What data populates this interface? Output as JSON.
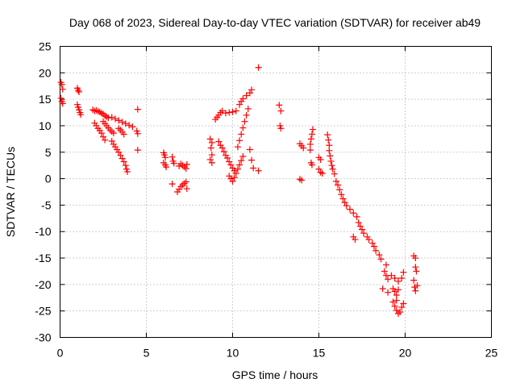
{
  "chart_data": {
    "type": "scatter",
    "title": "Day 068 of 2023, Sidereal Day-to-day VTEC variation (SDTVAR) for receiver ab49",
    "xlabel": "GPS time / hours",
    "ylabel": "SDTVAR / TECUs",
    "xlim": [
      0,
      25
    ],
    "ylim": [
      -30,
      25
    ],
    "xticks": [
      0,
      5,
      10,
      15,
      20,
      25
    ],
    "yticks": [
      -30,
      -25,
      -20,
      -15,
      -10,
      -5,
      0,
      5,
      10,
      15,
      20,
      25
    ],
    "grid": true,
    "marker": "plus",
    "color": "#ff0000",
    "series": [
      {
        "name": "SDTVAR",
        "points": [
          [
            0.05,
            18.2
          ],
          [
            0.1,
            17.8
          ],
          [
            0.15,
            16.9
          ],
          [
            0.05,
            15.2
          ],
          [
            0.1,
            14.6
          ],
          [
            0.15,
            14.2
          ],
          [
            1.0,
            17.1
          ],
          [
            1.05,
            16.7
          ],
          [
            1.1,
            16.4
          ],
          [
            1.0,
            14.0
          ],
          [
            1.05,
            13.5
          ],
          [
            1.1,
            13.0
          ],
          [
            1.15,
            12.5
          ],
          [
            1.2,
            12.1
          ],
          [
            1.9,
            13.0
          ],
          [
            2.0,
            12.8
          ],
          [
            2.1,
            12.9
          ],
          [
            2.2,
            12.7
          ],
          [
            2.3,
            12.6
          ],
          [
            2.4,
            12.4
          ],
          [
            2.5,
            12.2
          ],
          [
            2.6,
            11.9
          ],
          [
            2.7,
            11.7
          ],
          [
            2.8,
            11.5
          ],
          [
            2.0,
            10.5
          ],
          [
            2.1,
            10.0
          ],
          [
            2.2,
            9.5
          ],
          [
            2.3,
            9.1
          ],
          [
            2.4,
            8.6
          ],
          [
            2.5,
            7.9
          ],
          [
            2.6,
            7.3
          ],
          [
            2.5,
            10.8
          ],
          [
            2.6,
            10.4
          ],
          [
            2.7,
            10.0
          ],
          [
            2.8,
            9.6
          ],
          [
            2.9,
            9.2
          ],
          [
            3.0,
            8.9
          ],
          [
            3.1,
            8.6
          ],
          [
            3.0,
            11.6
          ],
          [
            3.2,
            11.3
          ],
          [
            3.4,
            11.0
          ],
          [
            3.6,
            10.7
          ],
          [
            3.8,
            10.4
          ],
          [
            4.0,
            10.1
          ],
          [
            4.2,
            9.8
          ],
          [
            3.0,
            7.1
          ],
          [
            3.1,
            6.5
          ],
          [
            3.2,
            6.0
          ],
          [
            3.3,
            5.5
          ],
          [
            3.4,
            5.0
          ],
          [
            3.5,
            4.4
          ],
          [
            3.6,
            3.8
          ],
          [
            3.7,
            3.2
          ],
          [
            3.8,
            2.5
          ],
          [
            3.85,
            1.8
          ],
          [
            3.9,
            1.3
          ],
          [
            3.4,
            9.5
          ],
          [
            3.5,
            9.2
          ],
          [
            3.6,
            8.8
          ],
          [
            3.7,
            8.4
          ],
          [
            4.5,
            13.1
          ],
          [
            4.45,
            9.0
          ],
          [
            4.5,
            8.5
          ],
          [
            4.5,
            5.4
          ],
          [
            6.0,
            4.9
          ],
          [
            6.05,
            4.5
          ],
          [
            6.1,
            4.0
          ],
          [
            6.0,
            3.0
          ],
          [
            6.1,
            2.6
          ],
          [
            6.15,
            2.2
          ],
          [
            6.5,
            4.1
          ],
          [
            6.55,
            3.3
          ],
          [
            6.6,
            2.9
          ],
          [
            6.5,
            -1.0
          ],
          [
            6.8,
            -2.5
          ],
          [
            6.9,
            -2.0
          ],
          [
            7.0,
            -1.5
          ],
          [
            7.1,
            -1.2
          ],
          [
            7.2,
            -0.9
          ],
          [
            7.3,
            -0.6
          ],
          [
            7.35,
            -1.9
          ],
          [
            6.9,
            2.4
          ],
          [
            7.0,
            2.8
          ],
          [
            7.1,
            2.5
          ],
          [
            7.2,
            2.2
          ],
          [
            7.3,
            1.9
          ],
          [
            7.35,
            2.7
          ],
          [
            8.7,
            7.5
          ],
          [
            8.8,
            6.8
          ],
          [
            8.75,
            5.8
          ],
          [
            8.8,
            4.5
          ],
          [
            8.7,
            3.6
          ],
          [
            8.8,
            3.0
          ],
          [
            9.0,
            11.2
          ],
          [
            9.1,
            11.6
          ],
          [
            9.2,
            12.0
          ],
          [
            9.3,
            12.5
          ],
          [
            9.4,
            12.8
          ],
          [
            9.6,
            12.4
          ],
          [
            9.8,
            12.5
          ],
          [
            10.0,
            12.6
          ],
          [
            10.2,
            12.8
          ],
          [
            9.2,
            7.0
          ],
          [
            9.3,
            6.3
          ],
          [
            9.4,
            5.8
          ],
          [
            9.5,
            5.1
          ],
          [
            9.6,
            4.4
          ],
          [
            9.7,
            3.9
          ],
          [
            9.8,
            3.2
          ],
          [
            9.9,
            2.6
          ],
          [
            10.0,
            2.0
          ],
          [
            10.1,
            1.5
          ],
          [
            9.8,
            0.5
          ],
          [
            9.9,
            0.0
          ],
          [
            10.0,
            -0.5
          ],
          [
            10.1,
            0.2
          ],
          [
            10.2,
            1.0
          ],
          [
            10.3,
            1.8
          ],
          [
            10.4,
            2.6
          ],
          [
            10.5,
            3.4
          ],
          [
            10.6,
            4.2
          ],
          [
            10.3,
            6.0
          ],
          [
            10.4,
            7.2
          ],
          [
            10.5,
            8.4
          ],
          [
            10.6,
            9.6
          ],
          [
            10.7,
            10.8
          ],
          [
            10.8,
            12.0
          ],
          [
            10.9,
            13.2
          ],
          [
            10.4,
            14.0
          ],
          [
            10.5,
            14.6
          ],
          [
            10.6,
            15.1
          ],
          [
            10.8,
            15.7
          ],
          [
            11.0,
            16.2
          ],
          [
            11.1,
            16.8
          ],
          [
            11.0,
            5.5
          ],
          [
            11.1,
            3.5
          ],
          [
            11.2,
            2.0
          ],
          [
            11.5,
            1.5
          ],
          [
            11.5,
            21.0
          ],
          [
            12.7,
            13.9
          ],
          [
            12.8,
            12.8
          ],
          [
            12.75,
            10.0
          ],
          [
            12.8,
            9.5
          ],
          [
            13.9,
            6.6
          ],
          [
            14.0,
            6.2
          ],
          [
            14.1,
            5.8
          ],
          [
            13.9,
            -0.1
          ],
          [
            14.0,
            -0.3
          ],
          [
            14.5,
            6.5
          ],
          [
            14.55,
            7.5
          ],
          [
            14.6,
            8.4
          ],
          [
            14.65,
            9.3
          ],
          [
            14.5,
            5.4
          ],
          [
            14.55,
            3.0
          ],
          [
            14.6,
            2.6
          ],
          [
            15.0,
            4.0
          ],
          [
            15.1,
            3.6
          ],
          [
            15.0,
            1.8
          ],
          [
            15.1,
            1.2
          ],
          [
            15.2,
            1.0
          ],
          [
            15.5,
            8.3
          ],
          [
            15.55,
            7.3
          ],
          [
            15.6,
            6.3
          ],
          [
            15.6,
            5.3
          ],
          [
            15.65,
            4.3
          ],
          [
            15.7,
            3.3
          ],
          [
            15.75,
            2.5
          ],
          [
            15.8,
            1.8
          ],
          [
            15.9,
            0.9
          ],
          [
            16.0,
            -0.5
          ],
          [
            16.1,
            -1.2
          ],
          [
            16.2,
            -2.1
          ],
          [
            16.3,
            -3.0
          ],
          [
            16.4,
            -3.8
          ],
          [
            16.5,
            -4.5
          ],
          [
            16.6,
            -5.1
          ],
          [
            16.8,
            -5.8
          ],
          [
            17.0,
            -6.5
          ],
          [
            17.2,
            -7.2
          ],
          [
            17.3,
            -8.3
          ],
          [
            17.4,
            -9.0
          ],
          [
            17.5,
            -9.6
          ],
          [
            17.6,
            -10.3
          ],
          [
            17.8,
            -11.0
          ],
          [
            17.9,
            -11.5
          ],
          [
            18.1,
            -12.2
          ],
          [
            18.2,
            -12.8
          ],
          [
            18.3,
            -13.6
          ],
          [
            18.5,
            -14.4
          ],
          [
            18.6,
            -15.2
          ],
          [
            17.0,
            -11.0
          ],
          [
            17.1,
            -11.5
          ],
          [
            18.9,
            -16.3
          ],
          [
            18.8,
            -17.5
          ],
          [
            18.9,
            -18.3
          ],
          [
            19.0,
            -19.0
          ],
          [
            18.7,
            -20.8
          ],
          [
            19.0,
            -21.5
          ],
          [
            19.2,
            -18.3
          ],
          [
            19.4,
            -18.8
          ],
          [
            19.6,
            -19.4
          ],
          [
            19.8,
            -18.8
          ],
          [
            19.9,
            -17.7
          ],
          [
            19.3,
            -20.8
          ],
          [
            19.4,
            -21.3
          ],
          [
            19.5,
            -22.0
          ],
          [
            19.6,
            -21.0
          ],
          [
            19.3,
            -23.3
          ],
          [
            19.4,
            -24.1
          ],
          [
            19.5,
            -24.9
          ],
          [
            19.6,
            -25.5
          ],
          [
            19.7,
            -25.2
          ],
          [
            19.8,
            -24.3
          ],
          [
            19.9,
            -23.6
          ],
          [
            19.5,
            -23.0
          ],
          [
            20.5,
            -14.6
          ],
          [
            20.6,
            -15.0
          ],
          [
            20.6,
            -16.7
          ],
          [
            20.65,
            -17.5
          ],
          [
            20.5,
            -19.2
          ],
          [
            20.55,
            -20.5
          ],
          [
            20.6,
            -21.2
          ],
          [
            20.7,
            -20.2
          ]
        ]
      }
    ]
  }
}
